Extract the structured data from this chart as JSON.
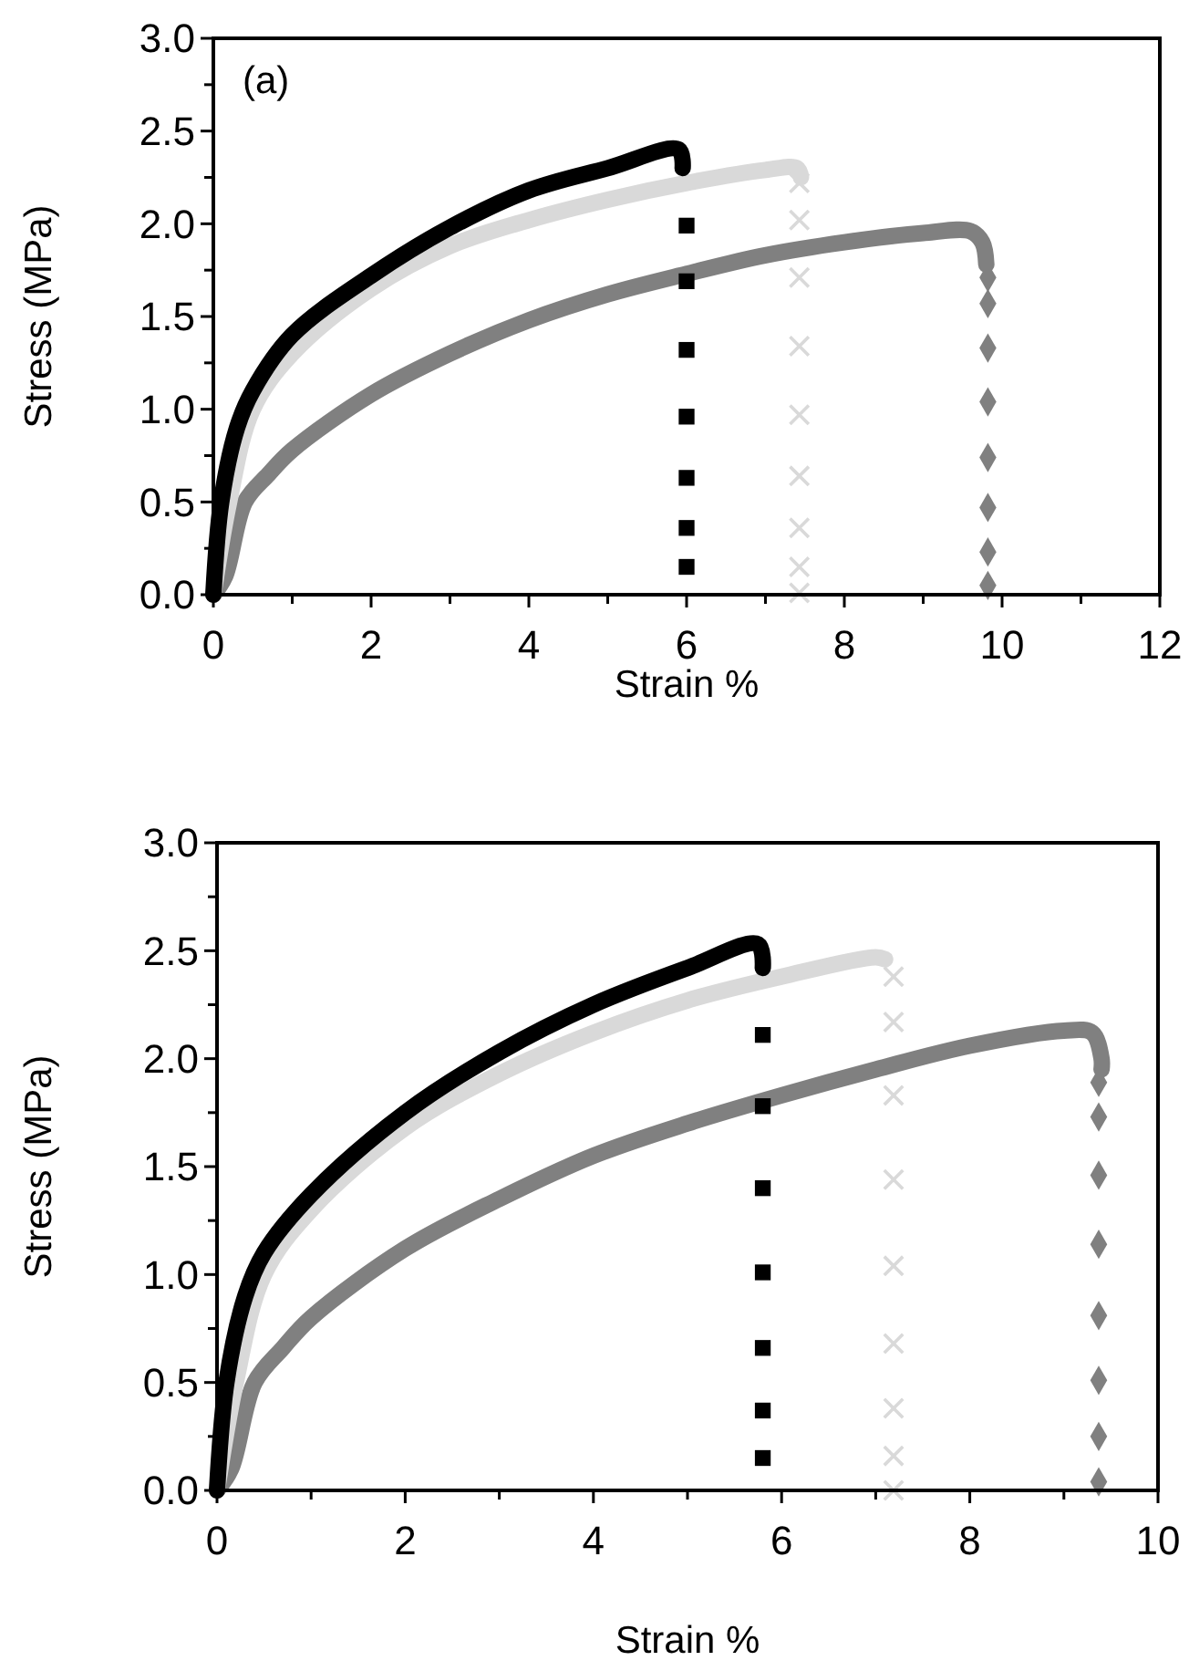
{
  "chart_data": [
    {
      "type": "line",
      "xlabel": "Strain %",
      "ylabel": "Stress (MPa)",
      "annotations": [
        "(a)"
      ],
      "xlim": [
        0,
        12
      ],
      "xticks": [
        0,
        2,
        4,
        6,
        8,
        10,
        12
      ],
      "ylim": [
        0,
        3
      ],
      "yticks": [
        {
          "value": 0,
          "label": "0.0"
        },
        {
          "value": 0.5,
          "label": "0.5"
        },
        {
          "value": 1,
          "label": "1.0"
        },
        {
          "value": 1.5,
          "label": "1.5"
        },
        {
          "value": 2,
          "label": "2.0"
        },
        {
          "value": 2.5,
          "label": "2.5"
        },
        {
          "value": 3,
          "label": "3.0"
        }
      ],
      "grid": false,
      "series": [
        {
          "type": "line",
          "color": "#808080",
          "x": [
            0,
            0.15,
            0.4,
            0.7,
            1,
            2,
            3,
            4,
            5,
            6,
            7,
            8,
            9,
            9.6,
            9.75,
            9.8
          ],
          "values": [
            0,
            0.1,
            0.5,
            0.65,
            0.78,
            1.08,
            1.3,
            1.48,
            1.62,
            1.73,
            1.83,
            1.9,
            1.95,
            1.96,
            1.9,
            1.78
          ]
        },
        {
          "type": "scatter",
          "marker": "diamond",
          "color": "#808080",
          "x": [
            9.82,
            9.82,
            9.82,
            9.82,
            9.82,
            9.82,
            9.82,
            9.82
          ],
          "values": [
            1.71,
            1.57,
            1.33,
            1.04,
            0.74,
            0.47,
            0.23,
            0.05
          ]
        },
        {
          "type": "line",
          "color": "#d9d9d9",
          "x": [
            0,
            0.2,
            0.5,
            1,
            2,
            3,
            4,
            5,
            6,
            7,
            7.4,
            7.45
          ],
          "values": [
            0,
            0.5,
            1.0,
            1.3,
            1.65,
            1.88,
            2.02,
            2.13,
            2.22,
            2.29,
            2.3,
            2.25
          ]
        },
        {
          "type": "scatter",
          "marker": "cross",
          "color": "#d9d9d9",
          "x": [
            7.43,
            7.43,
            7.43,
            7.43,
            7.43,
            7.43,
            7.43,
            7.43,
            7.43
          ],
          "values": [
            2.22,
            2.02,
            1.71,
            1.34,
            0.97,
            0.64,
            0.36,
            0.15,
            0.01
          ]
        },
        {
          "type": "line",
          "color": "#000000",
          "x": [
            0,
            0.1,
            0.3,
            0.5,
            1,
            2,
            3,
            4,
            5,
            5.9,
            5.95
          ],
          "values": [
            0,
            0.5,
            0.9,
            1.1,
            1.4,
            1.72,
            1.98,
            2.18,
            2.3,
            2.4,
            2.3
          ]
        },
        {
          "type": "scatter",
          "marker": "square",
          "color": "#000000",
          "x": [
            6.0,
            6.0,
            6.0,
            6.0,
            6.0,
            6.0,
            6.0
          ],
          "values": [
            1.99,
            1.69,
            1.32,
            0.96,
            0.63,
            0.36,
            0.15
          ]
        }
      ]
    },
    {
      "type": "line",
      "xlabel": "Strain %",
      "ylabel": "Stress (MPa)",
      "xlim": [
        0,
        10
      ],
      "xticks": [
        0,
        2,
        4,
        6,
        8,
        10
      ],
      "ylim": [
        0,
        3
      ],
      "yticks": [
        {
          "value": 0,
          "label": "0.0"
        },
        {
          "value": 0.5,
          "label": "0.5"
        },
        {
          "value": 1,
          "label": "1.0"
        },
        {
          "value": 1.5,
          "label": "1.5"
        },
        {
          "value": 2,
          "label": "2.0"
        },
        {
          "value": 2.5,
          "label": "2.5"
        },
        {
          "value": 3,
          "label": "3.0"
        }
      ],
      "grid": false,
      "series": [
        {
          "type": "line",
          "color": "#808080",
          "x": [
            0,
            0.15,
            0.4,
            0.7,
            1,
            2,
            3,
            4,
            5,
            6,
            7,
            8,
            9,
            9.3,
            9.4,
            9.4
          ],
          "values": [
            0,
            0.1,
            0.5,
            0.66,
            0.8,
            1.12,
            1.35,
            1.55,
            1.7,
            1.83,
            1.95,
            2.06,
            2.13,
            2.12,
            2.0,
            1.95
          ]
        },
        {
          "type": "scatter",
          "marker": "diamond",
          "color": "#808080",
          "x": [
            9.37,
            9.37,
            9.37,
            9.37,
            9.37,
            9.37,
            9.37,
            9.37
          ],
          "values": [
            1.89,
            1.73,
            1.46,
            1.14,
            0.81,
            0.51,
            0.25,
            0.04
          ]
        },
        {
          "type": "line",
          "color": "#d9d9d9",
          "x": [
            0,
            0.2,
            0.5,
            1,
            2,
            3,
            4,
            5,
            6,
            7,
            7.1
          ],
          "values": [
            0,
            0.5,
            1.0,
            1.3,
            1.68,
            1.93,
            2.12,
            2.27,
            2.38,
            2.47,
            2.46
          ]
        },
        {
          "type": "scatter",
          "marker": "cross",
          "color": "#d9d9d9",
          "x": [
            7.19,
            7.19,
            7.19,
            7.19,
            7.19,
            7.19,
            7.19,
            7.19,
            7.19
          ],
          "values": [
            2.38,
            2.17,
            1.83,
            1.44,
            1.04,
            0.68,
            0.38,
            0.16,
            0.0
          ]
        },
        {
          "type": "line",
          "color": "#000000",
          "x": [
            0,
            0.1,
            0.3,
            0.5,
            1,
            2,
            3,
            4,
            5,
            5.75,
            5.8
          ],
          "values": [
            0,
            0.5,
            0.9,
            1.1,
            1.37,
            1.75,
            2.03,
            2.25,
            2.42,
            2.53,
            2.42
          ]
        },
        {
          "type": "scatter",
          "marker": "square",
          "color": "#000000",
          "x": [
            5.8,
            5.8,
            5.8,
            5.8,
            5.8,
            5.8,
            5.8
          ],
          "values": [
            2.11,
            1.78,
            1.4,
            1.01,
            0.66,
            0.37,
            0.15
          ]
        }
      ]
    }
  ]
}
